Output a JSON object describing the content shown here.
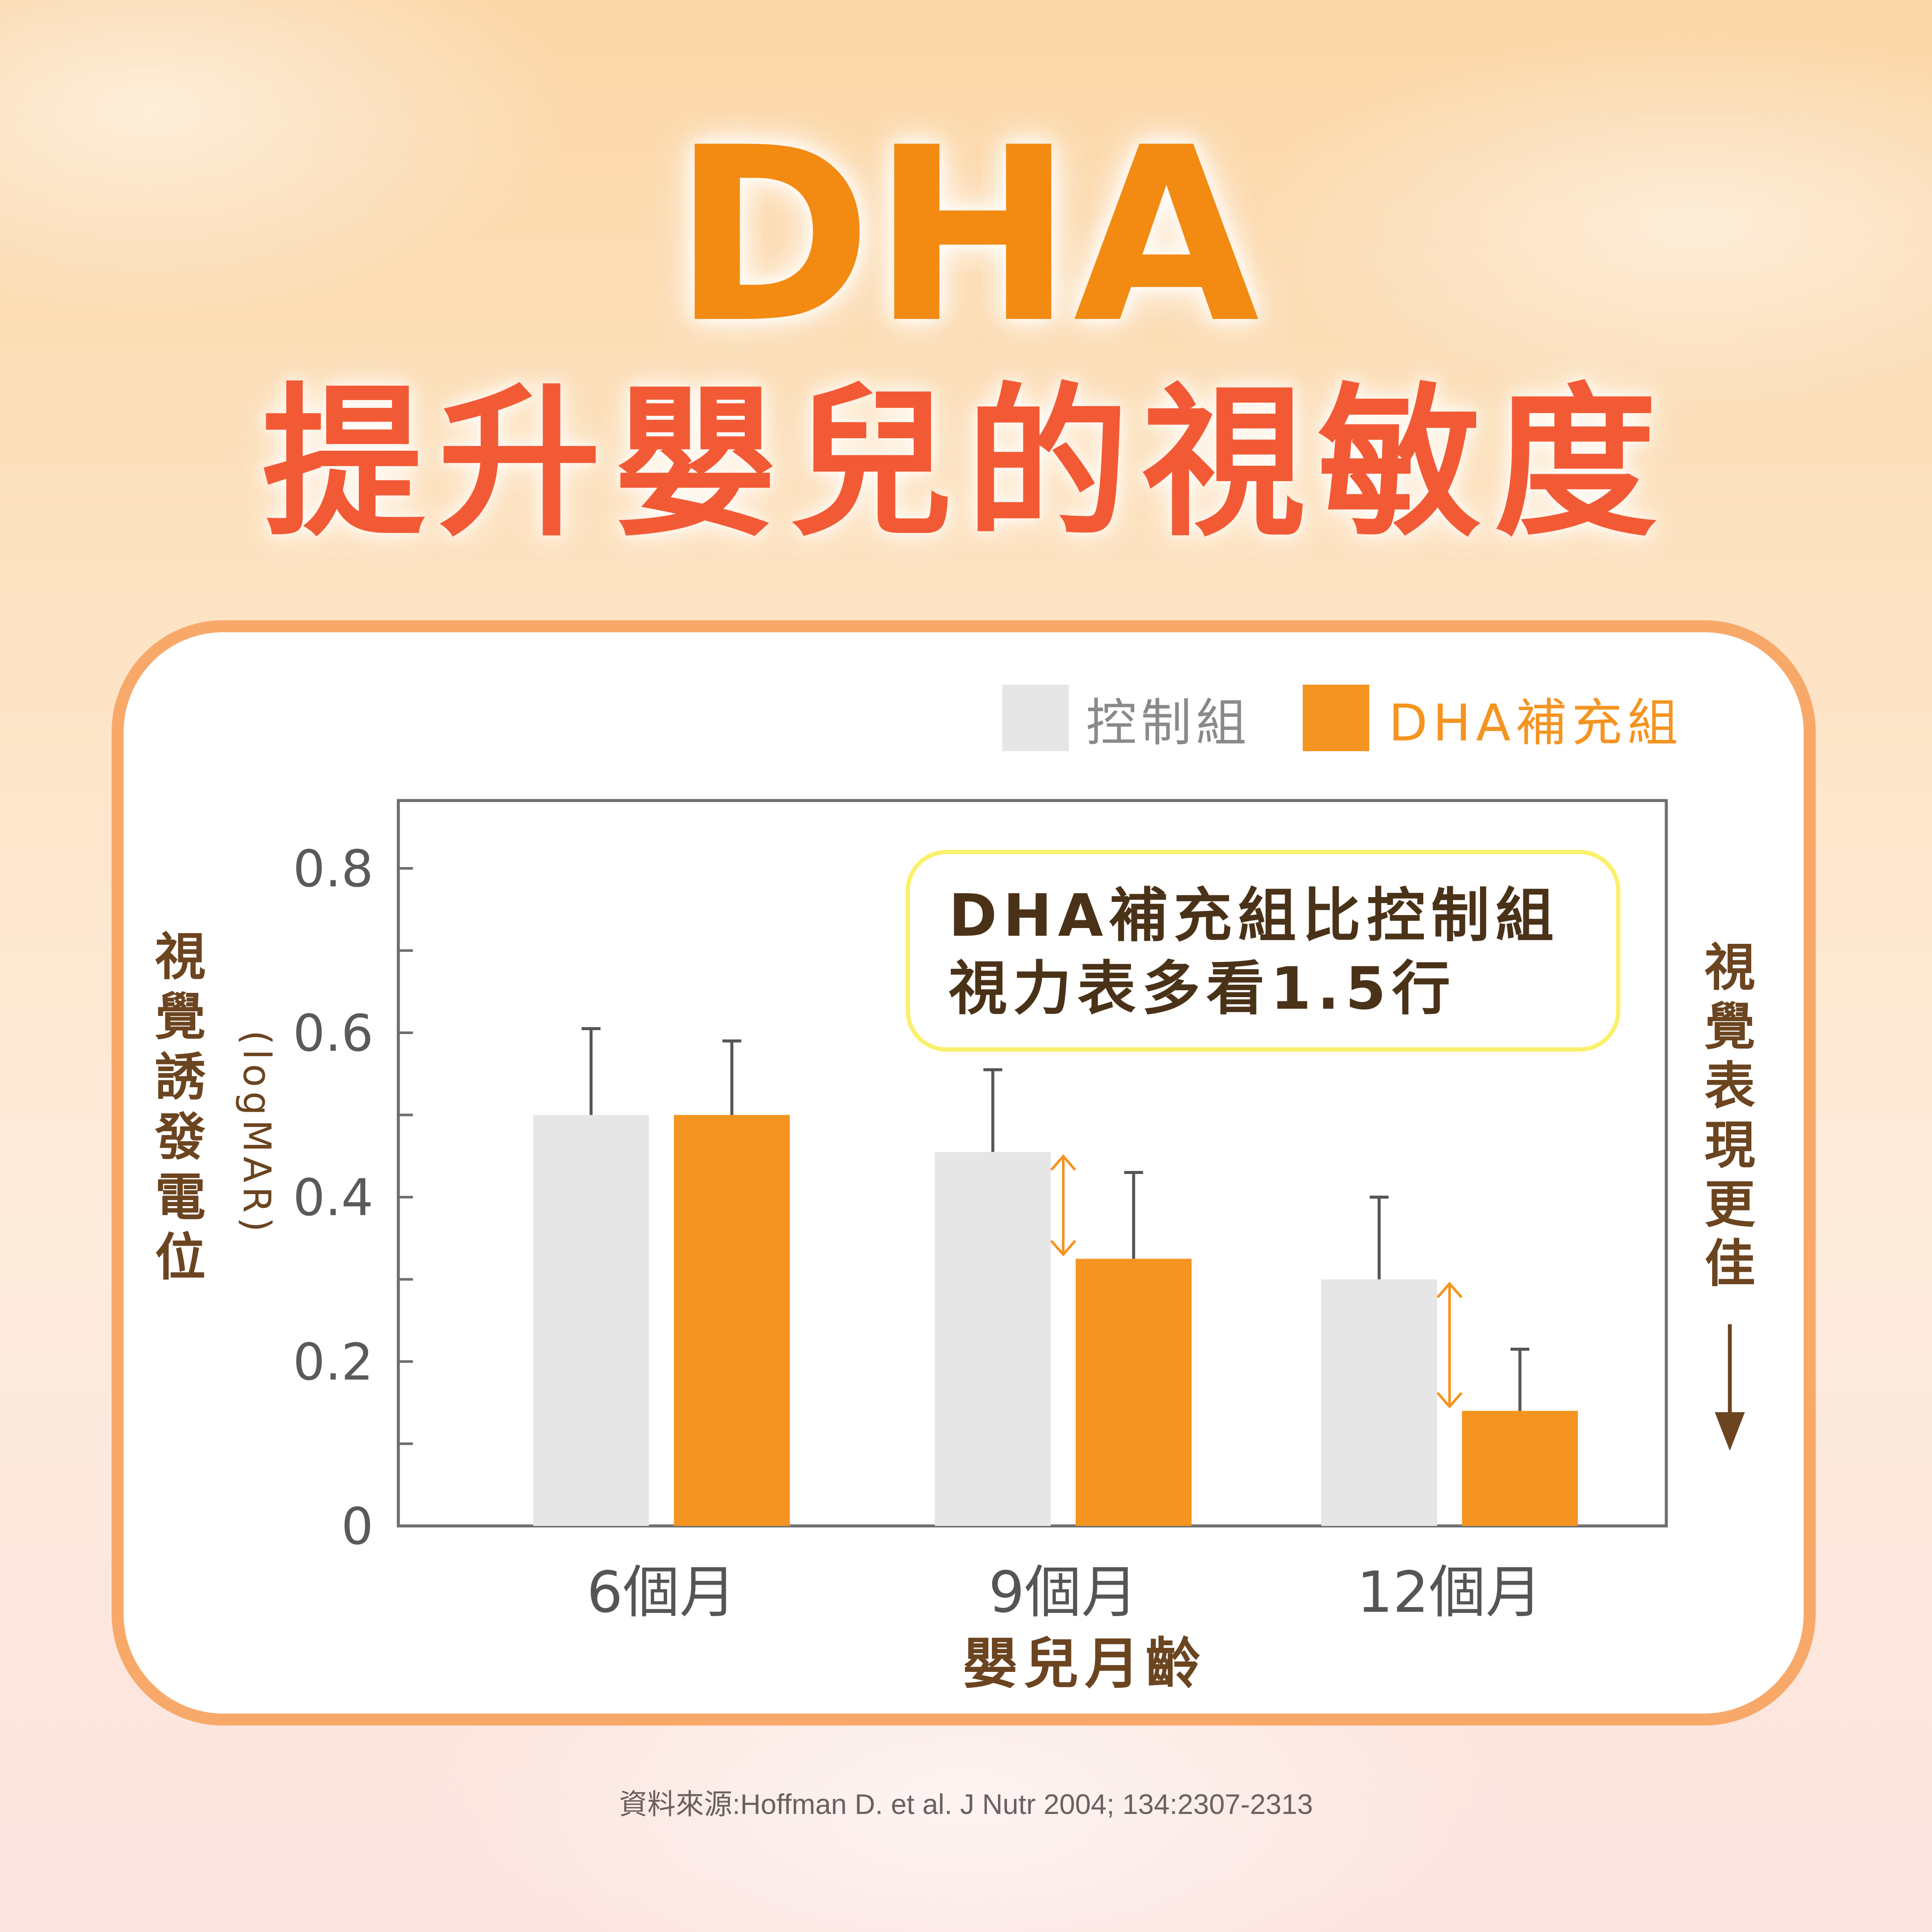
{
  "title": "DHA",
  "subtitle": "提升嬰兒的視敏度",
  "colors": {
    "title": "#f38a12",
    "subtitle": "#f25a36",
    "control_bar": "#e6e6e6",
    "dha_bar": "#f59420",
    "label_brown": "#6b4420",
    "card_border": "#f8a96a",
    "callout_border": "#fbf06b"
  },
  "chart_data": {
    "type": "bar",
    "categories": [
      "6個月",
      "9個月",
      "12個月"
    ],
    "series": [
      {
        "name": "控制組",
        "values": [
          0.5,
          0.455,
          0.3
        ],
        "error": [
          0.105,
          0.1,
          0.1
        ]
      },
      {
        "name": "DHA補充組",
        "values": [
          0.5,
          0.325,
          0.14
        ],
        "error": [
          0.09,
          0.105,
          0.075
        ]
      }
    ],
    "xlabel": "嬰兒月齡",
    "ylabel": "視覺誘發電位",
    "ylabel_unit": "(logMAR)",
    "yticks": [
      "0",
      "0.2",
      "0.4",
      "0.6",
      "0.8"
    ],
    "ylim": [
      0,
      0.88
    ],
    "legend_position": "top-right",
    "grid": false,
    "annotation_lines": [
      "DHA補充組比控制組",
      "視力表多看1.5行"
    ],
    "direction_label": "視覺表現更佳",
    "difference_arrows_at": [
      "9個月",
      "12個月"
    ]
  },
  "source": "資料來源:Hoffman D. et al. J Nutr 2004; 134:2307-2313"
}
